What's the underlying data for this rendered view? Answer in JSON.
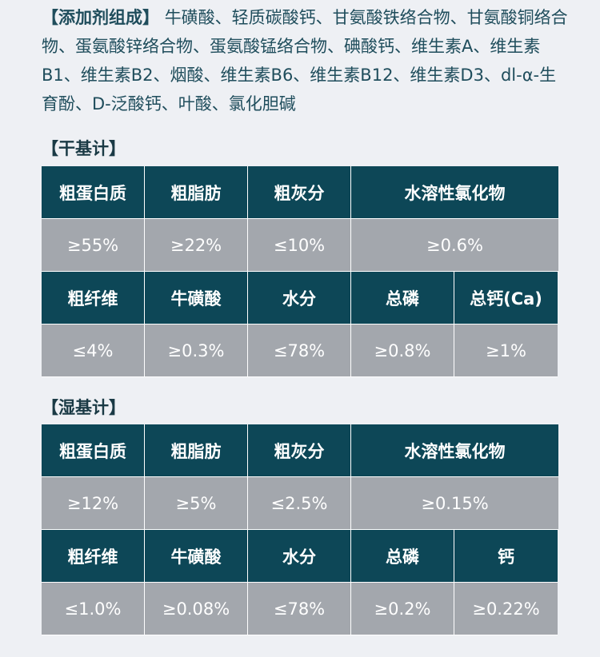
{
  "ingredients": {
    "label": "【添加剂组成】",
    "text": "牛磺酸、轻质碳酸钙、甘氨酸铁络合物、甘氨酸铜络合物、蛋氨酸锌络合物、蛋氨酸锰络合物、碘酸钙、维生素A、维生素B1、维生素B2、烟酸、维生素B6、维生素B12、维生素D3、dl-α-生育酚、D-泛酸钙、叶酸、氯化胆碱"
  },
  "dry_basis": {
    "title": "【干基计】",
    "row1_headers": [
      "粗蛋白质",
      "粗脂肪",
      "粗灰分",
      "水溶性氯化物"
    ],
    "row1_values": [
      "≥55%",
      "≥22%",
      "≤10%",
      "≥0.6%"
    ],
    "row2_headers": [
      "粗纤维",
      "牛磺酸",
      "水分",
      "总磷",
      "总钙(Ca)"
    ],
    "row2_values": [
      "≤4%",
      "≥0.3%",
      "≤78%",
      "≥0.8%",
      "≥1%"
    ]
  },
  "wet_basis": {
    "title": "【湿基计】",
    "row1_headers": [
      "粗蛋白质",
      "粗脂肪",
      "粗灰分",
      "水溶性氯化物"
    ],
    "row1_values": [
      "≥12%",
      "≥5%",
      "≤2.5%",
      "≥0.15%"
    ],
    "row2_headers": [
      "粗纤维",
      "牛磺酸",
      "水分",
      "总磷",
      "钙"
    ],
    "row2_values": [
      "≤1.0%",
      "≥0.08%",
      "≤78%",
      "≥0.2%",
      "≥0.22%"
    ]
  },
  "colors": {
    "header_bg": "#0d4757",
    "value_bg": "#a3a7ad",
    "page_bg": "#eef0f4",
    "text": "#1f4d5c"
  }
}
